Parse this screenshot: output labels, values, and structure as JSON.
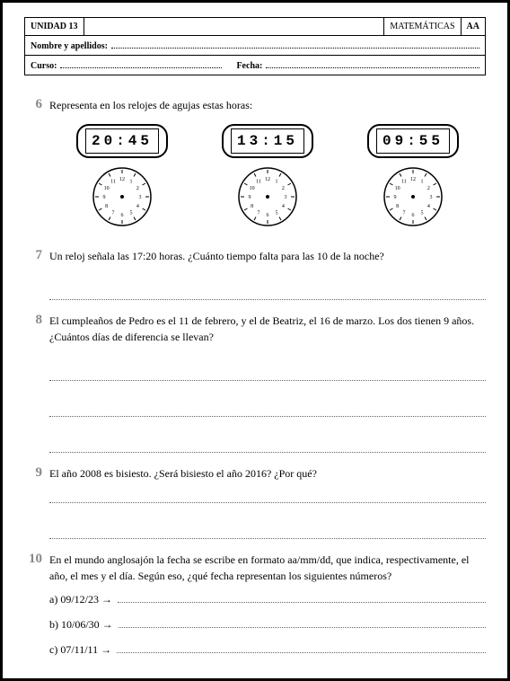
{
  "header": {
    "unit": "UNIDAD 13",
    "subject": "MATEMÁTICAS",
    "code": "AA",
    "name_label": "Nombre y apellidos:",
    "course_label": "Curso:",
    "date_label": "Fecha:"
  },
  "q6": {
    "num": "6",
    "text": "Representa en los relojes de agujas estas horas:",
    "clocks": [
      {
        "digital": "20:45"
      },
      {
        "digital": "13:15"
      },
      {
        "digital": "09:55"
      }
    ],
    "clock_face": {
      "numerals": [
        "12",
        "1",
        "2",
        "3",
        "4",
        "5",
        "6",
        "7",
        "8",
        "9",
        "10",
        "11"
      ],
      "stroke": "#000",
      "fontsize": 6
    }
  },
  "q7": {
    "num": "7",
    "text": "Un reloj señala las 17:20 horas. ¿Cuánto tiempo falta para las 10 de la noche?"
  },
  "q8": {
    "num": "8",
    "text": "El cumpleaños de Pedro es el 11 de febrero, y el de Beatriz, el 16 de marzo. Los dos tienen 9 años. ¿Cuántos días de diferencia se llevan?"
  },
  "q9": {
    "num": "9",
    "text": "El año 2008 es bisiesto. ¿Será bisiesto el año 2016? ¿Por qué?"
  },
  "q10": {
    "num": "10",
    "text": "En el mundo anglosajón la fecha se escribe en formato aa/mm/dd, que indica, respectivamente, el año, el mes y el día. Según eso, ¿qué fecha representan los siguientes números?",
    "items": [
      {
        "label": "a) 09/12/23 →"
      },
      {
        "label": "b) 10/06/30 →"
      },
      {
        "label": "c) 07/11/11 →"
      }
    ]
  }
}
